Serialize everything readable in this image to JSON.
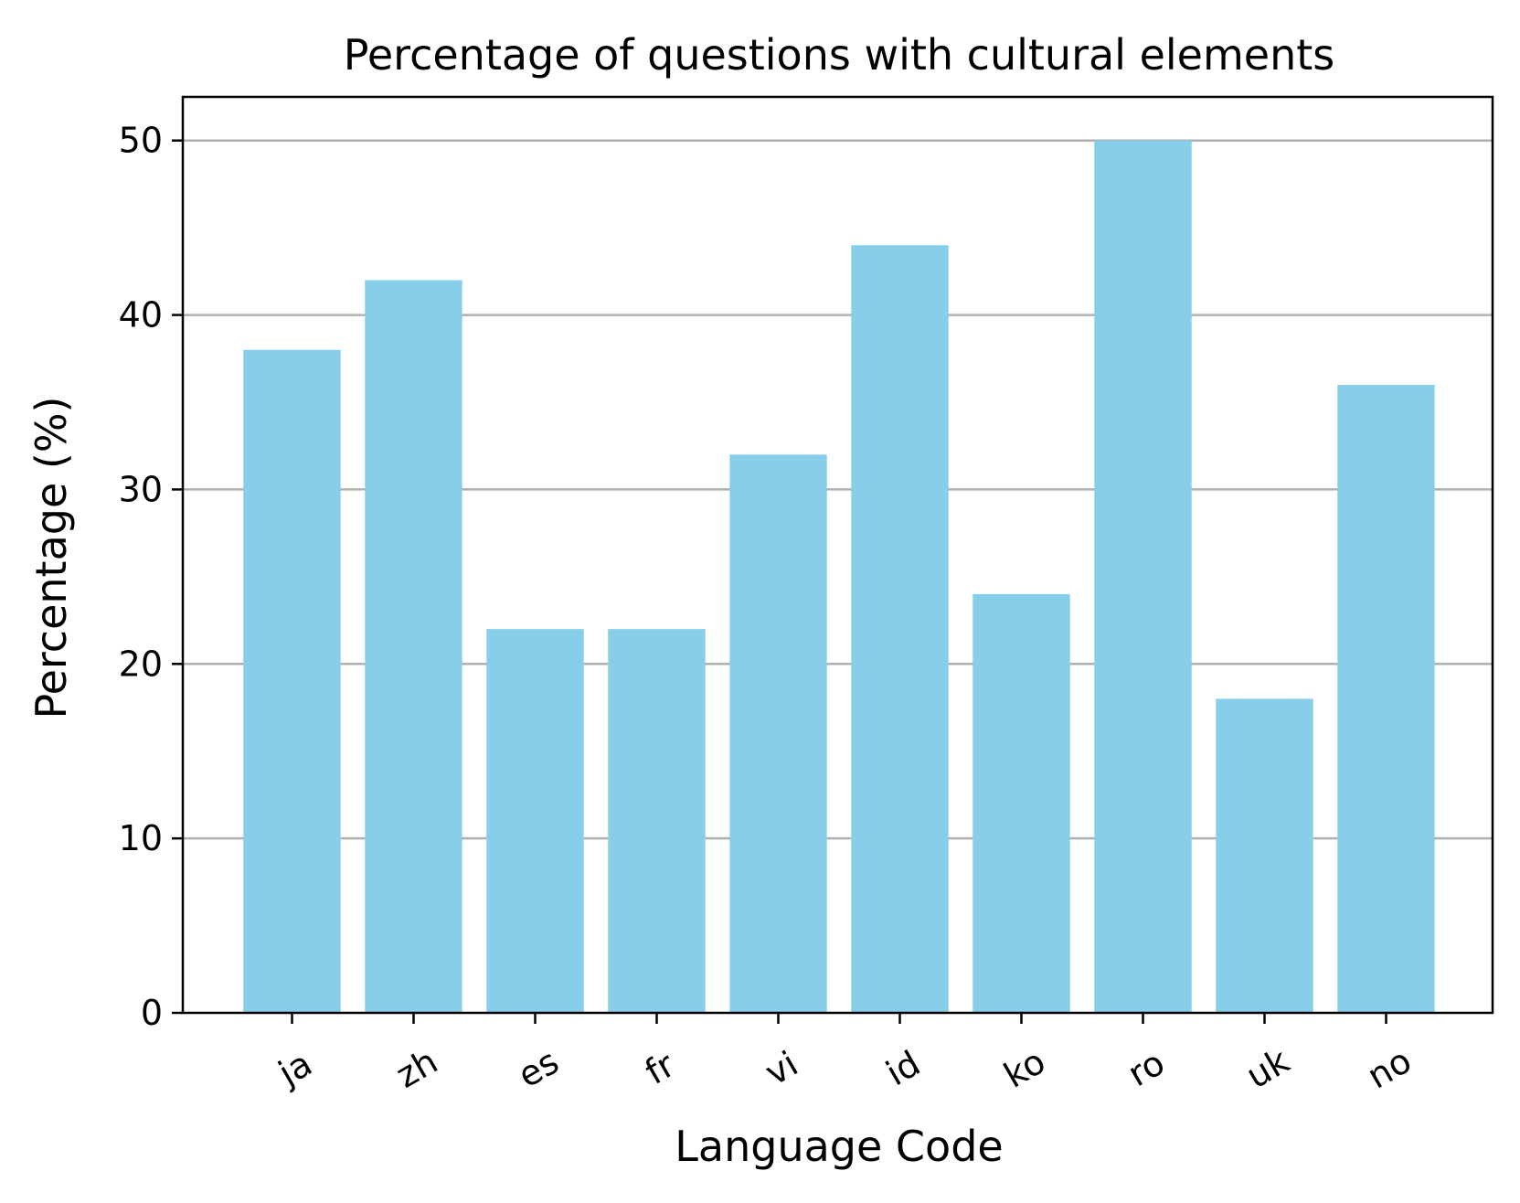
{
  "chart_data": {
    "type": "bar",
    "title": "Percentage of questions with cultural elements",
    "xlabel": "Language Code",
    "ylabel": "Percentage (%)",
    "categories": [
      "ja",
      "zh",
      "es",
      "fr",
      "vi",
      "id",
      "ko",
      "ro",
      "uk",
      "no"
    ],
    "values": [
      38,
      42,
      22,
      22,
      32,
      44,
      24,
      50,
      18,
      36
    ],
    "ylim": [
      0,
      52.5
    ],
    "yticks": [
      0,
      10,
      20,
      30,
      40,
      50
    ],
    "grid": "y-major",
    "legend": "none",
    "xtick_rotation": "30deg",
    "bar_color": "#87ceeb",
    "grid_color": "#b0b0b0",
    "axis_color": "#000000"
  }
}
